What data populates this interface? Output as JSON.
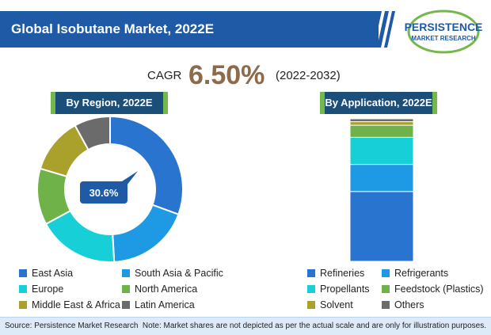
{
  "header": {
    "title": "Global Isobutane Market, 2022E"
  },
  "logo": {
    "line1": "PERSISTENCE",
    "line2": "MARKET RESEARCH"
  },
  "cagr": {
    "label": "CAGR",
    "value": "6.50%",
    "period": "(2022-2032)"
  },
  "colors": {
    "header": "#1f5aa6",
    "ribbon": "#1c4e7a",
    "accent": "#73b84a",
    "cagr_value": "#8c6a4a"
  },
  "chart_data": [
    {
      "type": "pie",
      "title": "By Region, 2022E",
      "donut": true,
      "callout": "30.6%",
      "series": [
        {
          "name": "East Asia",
          "value": 30.6,
          "color": "#2874cf"
        },
        {
          "name": "South Asia & Pacific",
          "value": 18.5,
          "color": "#1e99e3"
        },
        {
          "name": "Europe",
          "value": 18.0,
          "color": "#17cfd6"
        },
        {
          "name": "North America",
          "value": 12.5,
          "color": "#6fb24a"
        },
        {
          "name": "Middle East & Africa",
          "value": 12.4,
          "color": "#a9a12c"
        },
        {
          "name": "Latin America",
          "value": 8.0,
          "color": "#6b6b6b"
        }
      ]
    },
    {
      "type": "bar",
      "stacked": true,
      "title": "By Application, 2022E",
      "series": [
        {
          "name": "Refineries",
          "value": 49.0,
          "color": "#2874cf"
        },
        {
          "name": "Refrigerants",
          "value": 19.0,
          "color": "#1e99e3"
        },
        {
          "name": "Propellants",
          "value": 19.0,
          "color": "#17cfd6"
        },
        {
          "name": "Feedstock (Plastics)",
          "value": 8.5,
          "color": "#6fb24a"
        },
        {
          "name": "Solvent",
          "value": 2.5,
          "color": "#a9a12c"
        },
        {
          "name": "Others",
          "value": 2.0,
          "color": "#6b6b6b"
        }
      ]
    }
  ],
  "footer": {
    "source": "Source: Persistence Market Research",
    "note": "Note: Market shares are not depicted as per the actual scale and are only for illustration purposes."
  }
}
